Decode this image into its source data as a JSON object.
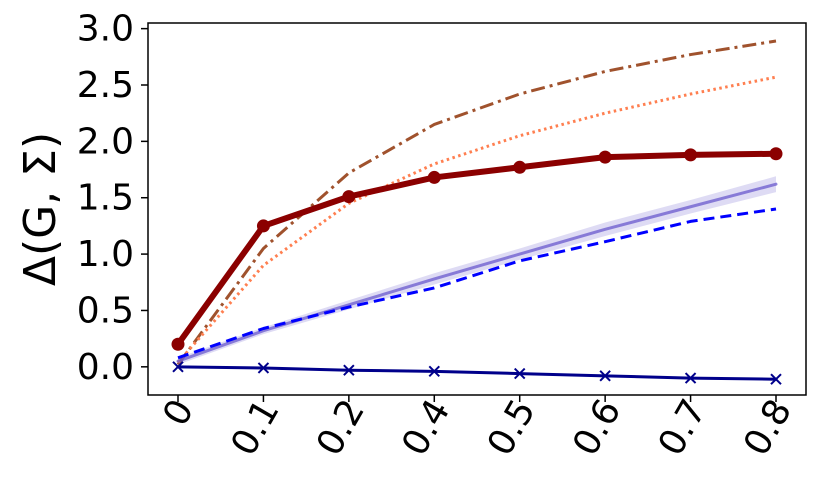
{
  "chart_data": {
    "type": "line",
    "title": "",
    "xlabel": "",
    "ylabel": "Δ(G, Σ)",
    "categories": [
      "0",
      "0.1",
      "0.2",
      "0.4",
      "0.5",
      "0.6",
      "0.7",
      "0.8"
    ],
    "ylim": [
      -0.25,
      3.05
    ],
    "y_ticks": [
      "0.0",
      "0.5",
      "1.0",
      "1.5",
      "2.0",
      "2.5",
      "3.0"
    ],
    "x_tick_rotation": "-60deg",
    "grid": false,
    "legend": "none",
    "series": [
      {
        "style": "dash-dot",
        "color": "#a0522d",
        "values": [
          0.02,
          1.05,
          1.72,
          2.15,
          2.42,
          2.62,
          2.77,
          2.89
        ]
      },
      {
        "style": "dotted",
        "color": "#ff7f50",
        "values": [
          0.04,
          0.9,
          1.45,
          1.8,
          2.05,
          2.25,
          2.42,
          2.57
        ]
      },
      {
        "style": "solid-circle-markers",
        "color": "#8b0000",
        "values": [
          0.2,
          1.25,
          1.51,
          1.68,
          1.77,
          1.86,
          1.88,
          1.89
        ]
      },
      {
        "style": "solid-with-band",
        "color": "#6a5acd",
        "values": [
          0.05,
          0.32,
          0.55,
          0.78,
          1.0,
          1.22,
          1.42,
          1.62
        ],
        "band": [
          0.03,
          0.03,
          0.04,
          0.05,
          0.05,
          0.06,
          0.06,
          0.07
        ]
      },
      {
        "style": "dashed",
        "color": "#0000ff",
        "values": [
          0.08,
          0.34,
          0.53,
          0.7,
          0.94,
          1.11,
          1.29,
          1.4
        ]
      },
      {
        "style": "solid-x-markers",
        "color": "#00008b",
        "values": [
          0.0,
          -0.01,
          -0.03,
          -0.04,
          -0.06,
          -0.08,
          -0.1,
          -0.11
        ]
      }
    ]
  }
}
